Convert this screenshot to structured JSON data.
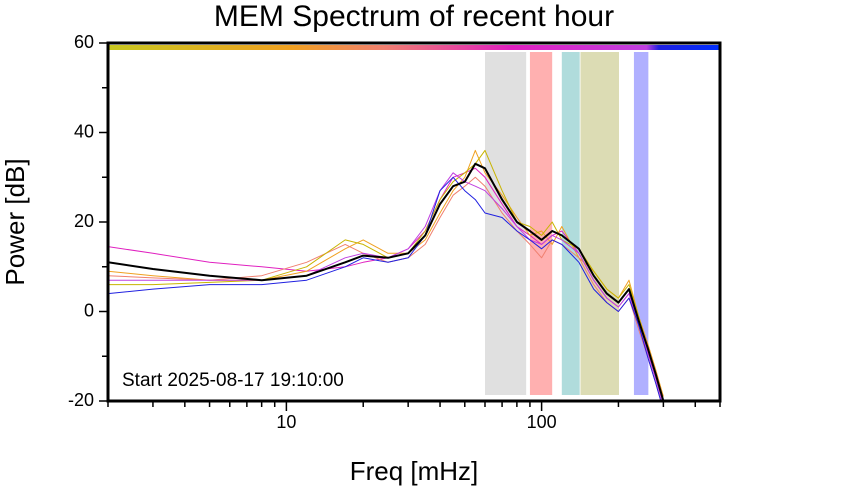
{
  "chart_data": {
    "type": "line",
    "title": "MEM Spectrum of recent hour",
    "xlabel": "Freq [mHz]",
    "ylabel": "Power [dB]",
    "annotation": "Start 2025-08-17 19:10:00",
    "xscale": "log",
    "x": [
      2,
      3,
      5,
      8,
      12,
      17,
      20,
      25,
      30,
      35,
      40,
      45,
      50,
      55,
      60,
      70,
      80,
      90,
      100,
      110,
      120,
      140,
      160,
      180,
      200,
      220,
      240,
      260,
      280,
      300
    ],
    "series": [
      {
        "color": "#e020c0",
        "width": 1,
        "values": [
          14.5,
          13,
          11,
          10,
          9,
          10,
          11,
          12,
          14,
          18,
          25,
          30,
          31,
          32,
          30,
          24,
          19,
          17,
          15,
          17,
          18,
          13,
          7,
          3,
          1,
          4,
          -3,
          -9,
          -15,
          -21
        ]
      },
      {
        "color": "#f0a020",
        "width": 1,
        "values": [
          9,
          8,
          7,
          7,
          9,
          14,
          16,
          13,
          13,
          16,
          22,
          27,
          30,
          36,
          31,
          26,
          21,
          17,
          18,
          15,
          19,
          12,
          9,
          5,
          3,
          7,
          -1,
          -7,
          -13,
          -19
        ]
      },
      {
        "color": "#f08070",
        "width": 1,
        "values": [
          8,
          7.5,
          7,
          8,
          11,
          15,
          13,
          11,
          12,
          15,
          21,
          26,
          28,
          30,
          28,
          22,
          18,
          15,
          12,
          16,
          15,
          12,
          6,
          2,
          0,
          3,
          -4,
          -10,
          -16,
          -22
        ]
      },
      {
        "color": "#c8b400",
        "width": 1,
        "values": [
          6,
          6,
          6.5,
          7,
          10,
          16,
          15,
          12,
          13,
          18,
          25,
          29,
          31,
          33,
          36,
          27,
          20,
          19,
          17,
          20,
          16,
          14,
          9,
          5,
          3,
          6,
          -1,
          -8,
          -14,
          -20
        ]
      },
      {
        "color": "#c040e0",
        "width": 1,
        "values": [
          7,
          7,
          7,
          7,
          8,
          12,
          13,
          12,
          14,
          19,
          27,
          31,
          29,
          28,
          27,
          23,
          19,
          16,
          15,
          17,
          16,
          13,
          7,
          3,
          1,
          4,
          -3,
          -9,
          -15,
          -21
        ]
      },
      {
        "color": "#2020e0",
        "width": 1,
        "values": [
          4,
          5,
          6,
          6,
          7,
          10,
          12,
          11,
          12,
          17,
          27,
          30,
          27,
          25,
          22,
          21,
          18,
          16,
          14,
          16,
          15,
          11,
          5,
          2,
          0,
          3,
          -3,
          -10,
          -16,
          -22
        ]
      },
      {
        "color": "#000000",
        "width": 2,
        "values": [
          11,
          9.5,
          8,
          7,
          8,
          11,
          12.5,
          12,
          13,
          17,
          24,
          28,
          29,
          33,
          32,
          25,
          20,
          18,
          16,
          18,
          17,
          14,
          8,
          4,
          2,
          5,
          -2,
          -8,
          -14,
          -20
        ]
      }
    ],
    "bands": [
      {
        "range": [
          60,
          87
        ],
        "color": "#e0e0e0"
      },
      {
        "range": [
          90,
          110
        ],
        "color": "#ffb0b0"
      },
      {
        "range": [
          120,
          141
        ],
        "color": "#b0dcdc"
      },
      {
        "range": [
          142,
          201
        ],
        "color": "#dcdcb4"
      },
      {
        "range": [
          230,
          262
        ],
        "color": "#b0b0ff"
      }
    ],
    "xlim": [
      2,
      500
    ],
    "xticks": [
      10,
      100
    ],
    "xminor_ticks": [
      2,
      3,
      4,
      5,
      6,
      7,
      8,
      9,
      20,
      30,
      40,
      50,
      60,
      70,
      80,
      90,
      200,
      300,
      400,
      500
    ],
    "ylim": [
      -20,
      60
    ],
    "yticks": [
      -20,
      0,
      20,
      40,
      60
    ],
    "yminor_ticks": [
      -10,
      10,
      30,
      50
    ]
  }
}
